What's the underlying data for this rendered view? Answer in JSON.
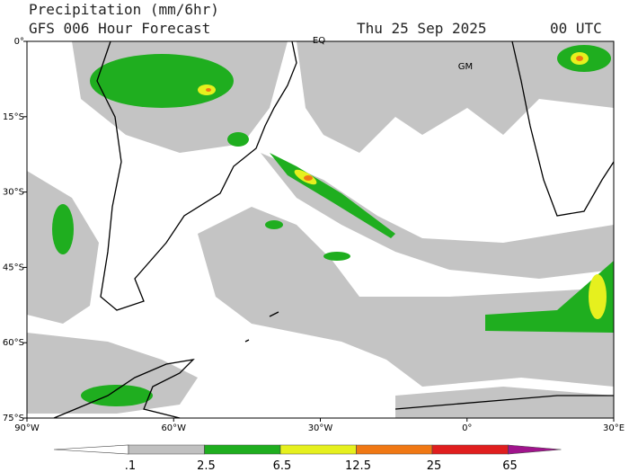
{
  "header": {
    "title": "Precipitation (mm/6hr)",
    "subtitle": "GFS 006 Hour Forecast",
    "date": "Thu 25 Sep 2025",
    "time": "00 UTC"
  },
  "map": {
    "lat_ticks": [
      "0°",
      "15°S",
      "30°S",
      "45°S",
      "60°S",
      "75°S"
    ],
    "lon_ticks": [
      "90°W",
      "60°W",
      "30°W",
      "0°",
      "30°E"
    ],
    "labels": [
      "EQ",
      "GM"
    ]
  },
  "legend": {
    "labels": [
      ".1",
      "2.5",
      "6.5",
      "12.5",
      "25",
      "65"
    ],
    "colors": [
      "#ffffff",
      "#c0c0c0",
      "#1fae1f",
      "#e6f01e",
      "#f07814",
      "#e01e1e",
      "#a0148c"
    ]
  }
}
